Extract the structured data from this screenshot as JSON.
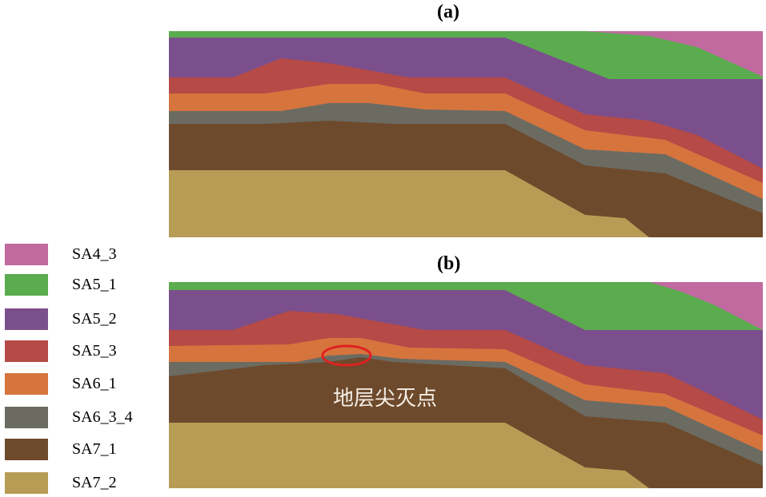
{
  "panels": {
    "a": {
      "label": "(a)"
    },
    "b": {
      "label": "(b)"
    }
  },
  "legend": [
    {
      "label": "SA4_3",
      "color": "#c06aa0"
    },
    {
      "label": "SA5_1",
      "color": "#5aac4e"
    },
    {
      "label": "SA5_2",
      "color": "#7b4f8c"
    },
    {
      "label": "SA5_3",
      "color": "#b54a47"
    },
    {
      "label": "SA6_1",
      "color": "#d6743e"
    },
    {
      "label": "SA6_3_4",
      "color": "#6b6b62"
    },
    {
      "label": "SA7_1",
      "color": "#6e4a2c"
    },
    {
      "label": "SA7_2",
      "color": "#b79c55"
    }
  ],
  "annotation": {
    "text": "地层尖灭点",
    "circle_color": "#e02020"
  }
}
